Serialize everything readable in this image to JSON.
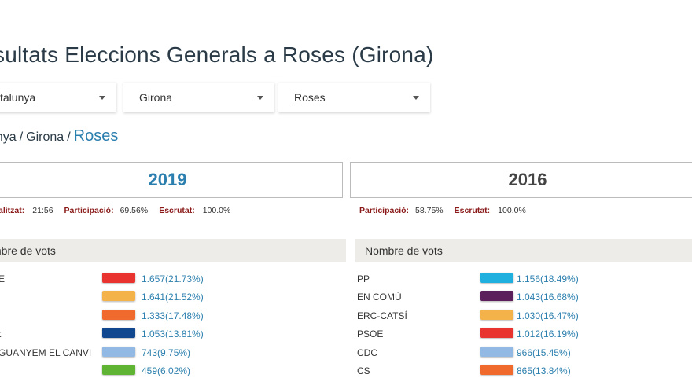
{
  "page_title": "sultats Eleccions Generals a Roses (Girona)",
  "selects": [
    {
      "value": "talunya"
    },
    {
      "value": "Girona"
    },
    {
      "value": "Roses"
    }
  ],
  "breadcrumb": {
    "item1": "unya",
    "sep1": "/",
    "item2": "Girona",
    "sep2": "/",
    "current": "Roses"
  },
  "year_2019": {
    "label": "2019",
    "info": {
      "updated_label": "alitzat:",
      "updated_value": "21:56",
      "participation_label": "Participació:",
      "participation_value": "69.56%",
      "scrutiny_label": "Escrutat:",
      "scrutiny_value": "100.0%"
    },
    "votes_header": "mbre de vots",
    "results": [
      {
        "party": "E",
        "votes": "1.657(21.73%)",
        "color": "#e8332f"
      },
      {
        "party": "",
        "votes": "1.641(21.52%)",
        "color": "#f4b24a"
      },
      {
        "party": "",
        "votes": "1.333(17.48%)",
        "color": "#ef6a2c"
      },
      {
        "party": "t",
        "votes": "1.053(13.81%)",
        "color": "#10478e"
      },
      {
        "party": "GUANYEM EL CANVI",
        "votes": "743(9.75%)",
        "color": "#92b9e3"
      },
      {
        "party": "",
        "votes": "459(6.02%)",
        "color": "#5fb533"
      }
    ]
  },
  "year_2016": {
    "label": "2016",
    "info": {
      "participation_label": "Participació:",
      "participation_value": "58.75%",
      "scrutiny_label": "Escrutat:",
      "scrutiny_value": "100.0%"
    },
    "votes_header": "Nombre de vots",
    "results": [
      {
        "party": "PP",
        "votes": "1.156(18.49%)",
        "color": "#1fb0e0"
      },
      {
        "party": "EN COMÚ",
        "votes": "1.043(16.68%)",
        "color": "#5b1f5c"
      },
      {
        "party": "ERC-CATSÍ",
        "votes": "1.030(16.47%)",
        "color": "#f4b24a"
      },
      {
        "party": "PSOE",
        "votes": "1.012(16.19%)",
        "color": "#e8332f"
      },
      {
        "party": "CDC",
        "votes": "966(15.45%)",
        "color": "#92b9e3"
      },
      {
        "party": "CS",
        "votes": "865(13.84%)",
        "color": "#ef6a2c"
      }
    ]
  }
}
